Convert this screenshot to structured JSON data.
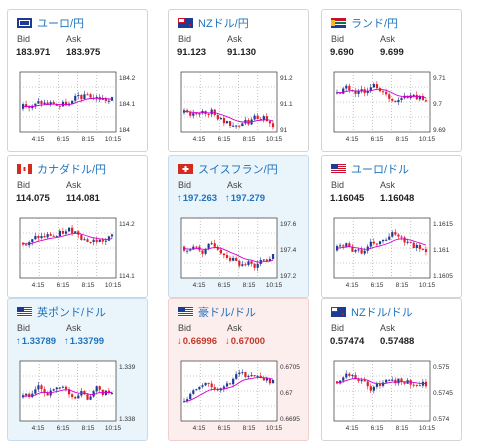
{
  "labels": {
    "bid": "Bid",
    "ask": "Ask"
  },
  "time_ticks": [
    "4:15",
    "6:15",
    "8:15",
    "10:15"
  ],
  "colors": {
    "up_bg": "#eaf4fb",
    "down_bg": "#fdeeee",
    "candle_up": "#1f3a93",
    "candle_down": "#e01f26",
    "ma": "#d100d1"
  },
  "cards": [
    {
      "name": "ユーロ/円",
      "flag": "eu",
      "trend": "flat",
      "bid": "183.971",
      "ask": "183.975",
      "bid_arrow": "",
      "ask_arrow": "",
      "y_ticks": [
        "184.2",
        "184.1",
        "184"
      ]
    },
    {
      "name": "NZドル/円",
      "flag": "nz",
      "trend": "flat",
      "bid": "91.123",
      "ask": "91.130",
      "bid_arrow": "",
      "ask_arrow": "",
      "y_ticks": [
        "91.2",
        "91.1",
        "91"
      ]
    },
    {
      "name": "ランド/円",
      "flag": "za",
      "trend": "flat",
      "bid": "9.690",
      "ask": "9.699",
      "bid_arrow": "",
      "ask_arrow": "",
      "y_ticks": [
        "9.71",
        "9.7",
        "9.69"
      ]
    },
    {
      "name": "カナダドル/円",
      "flag": "ca",
      "trend": "flat",
      "bid": "114.075",
      "ask": "114.081",
      "bid_arrow": "",
      "ask_arrow": "",
      "y_ticks": [
        "114.2",
        "114.1"
      ]
    },
    {
      "name": "スイスフラン/円",
      "flag": "ch",
      "trend": "up",
      "bid": "197.263",
      "ask": "197.279",
      "bid_arrow": "↑",
      "ask_arrow": "↑",
      "y_ticks": [
        "197.6",
        "197.4",
        "197.2"
      ]
    },
    {
      "name": "ユーロ/ドル",
      "flag": "us",
      "trend": "flat",
      "bid": "1.16045",
      "ask": "1.16048",
      "bid_arrow": "",
      "ask_arrow": "",
      "y_ticks": [
        "1.1615",
        "1.161",
        "1.1605"
      ]
    },
    {
      "name": "英ポンド/ドル",
      "flag": "us",
      "trend": "up",
      "bid": "1.33789",
      "ask": "1.33799",
      "bid_arrow": "↑",
      "ask_arrow": "↑",
      "y_ticks": [
        "1.339",
        "1.338"
      ]
    },
    {
      "name": "豪ドル/ドル",
      "flag": "us",
      "trend": "down",
      "bid": "0.66996",
      "ask": "0.67000",
      "bid_arrow": "↓",
      "ask_arrow": "↓",
      "y_ticks": [
        "0.6705",
        "0.67",
        "0.6695"
      ]
    },
    {
      "name": "NZドル/ドル",
      "flag": "nz",
      "trend": "flat",
      "bid": "0.57474",
      "ask": "0.57488",
      "bid_arrow": "",
      "ask_arrow": "",
      "y_ticks": [
        "0.575",
        "0.5745",
        "0.574"
      ]
    }
  ]
}
